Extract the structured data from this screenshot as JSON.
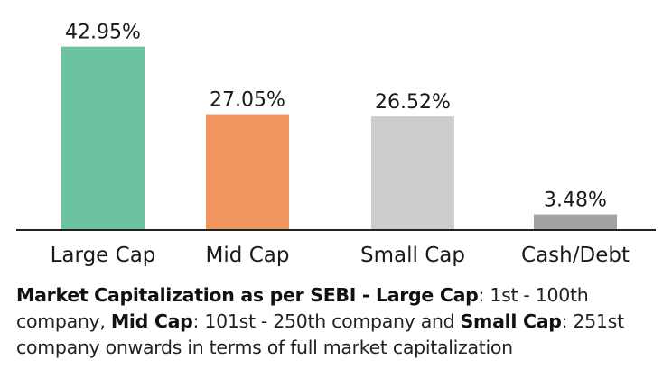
{
  "chart_data": {
    "type": "bar",
    "categories": [
      "Large Cap",
      "Mid Cap",
      "Small Cap",
      "Cash/Debt"
    ],
    "values": [
      42.95,
      27.05,
      26.52,
      3.48
    ],
    "value_labels": [
      "42.95%",
      "27.05%",
      "26.52%",
      "3.48%"
    ],
    "colors": [
      "#6cc3a0",
      "#f0955e",
      "#cccccc",
      "#a3a3a3"
    ],
    "ylim": [
      0,
      45
    ],
    "grid": false,
    "legend": "none"
  },
  "note": {
    "lead_bold": "Market Capitalization as per SEBI - ",
    "large_cap_bold": "Large Cap",
    "large_cap_text": ": 1st - 100th company, ",
    "mid_cap_bold": "Mid Cap",
    "mid_cap_text": ": 101st - 250th company and ",
    "small_cap_bold": "Small Cap",
    "small_cap_text": ": 251st company onwards in terms of full market capitalization"
  }
}
